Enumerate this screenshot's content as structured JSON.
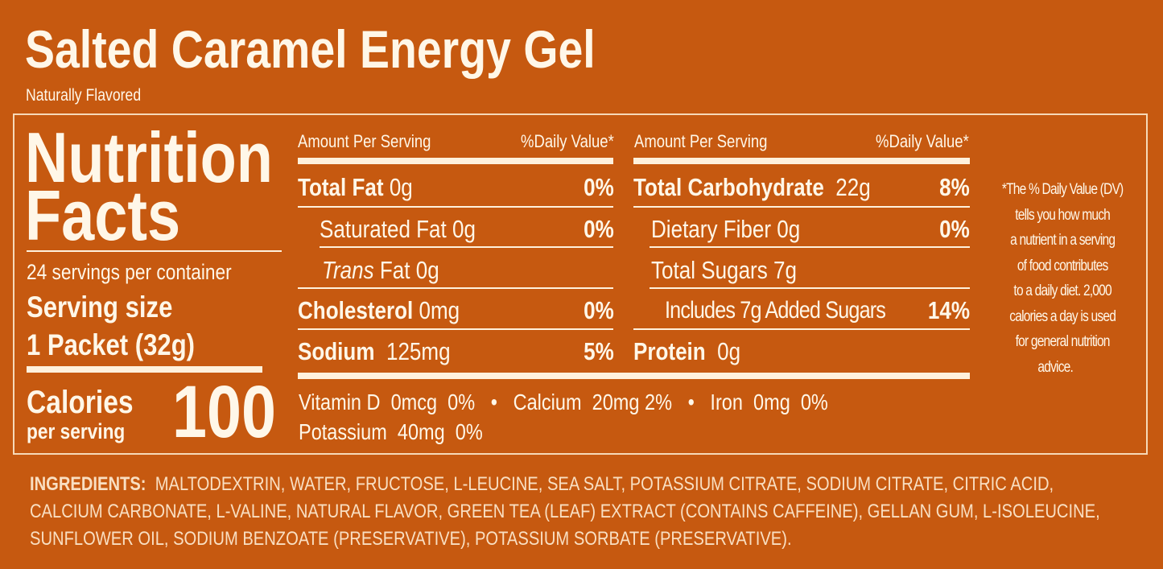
{
  "title": "Salted Caramel Energy Gel",
  "subtitle": "Naturally Flavored",
  "panel": {
    "heading_line1": "Nutrition",
    "heading_line2": "Facts",
    "servings_per_container": "24 servings per container",
    "serving_size_label": "Serving size",
    "serving_size_value": "1 Packet (32g)",
    "calories_label": "Calories",
    "calories_sub": "per serving",
    "calories_value": "100"
  },
  "left_table": {
    "header_amount": "Amount Per Serving",
    "header_dv": "%Daily Value*",
    "rows": [
      {
        "name": "Total Fat",
        "amount": "0g",
        "dv": "0%"
      },
      {
        "name": "Saturated Fat",
        "amount": "0g",
        "dv": "0%"
      },
      {
        "name": "Trans",
        "name_suffix": "Fat",
        "amount": "0g",
        "dv": ""
      },
      {
        "name": "Cholesterol",
        "amount": "0mg",
        "dv": "0%"
      },
      {
        "name": "Sodium",
        "amount": "125mg",
        "dv": "5%"
      }
    ]
  },
  "right_table": {
    "header_amount": "Amount Per Serving",
    "header_dv": "%Daily Value*",
    "rows": [
      {
        "name": "Total Carbohydrate",
        "amount": "22g",
        "dv": "8%"
      },
      {
        "name": "Dietary Fiber",
        "amount": "0g",
        "dv": "0%"
      },
      {
        "name": "Total Sugars",
        "amount": "7g",
        "dv": ""
      },
      {
        "name": "Includes 7g Added Sugars",
        "amount": "",
        "dv": "14%"
      },
      {
        "name": "Protein",
        "amount": "0g",
        "dv": ""
      }
    ]
  },
  "vitamins": {
    "line1": "Vitamin D  0mcg  0%   •   Calcium  20mg 2%   •   Iron  0mg  0%",
    "line2": "Potassium  40mg  0%"
  },
  "footnote": [
    "*The % Daily Value (DV)",
    "tells you how much",
    "a nutrient in a serving",
    "of food contributes",
    "to a daily diet. 2,000",
    "calories a day is used",
    "for general nutrition",
    "advice."
  ],
  "ingredients": {
    "label": "INGREDIENTS:",
    "line1": "MALTODEXTRIN, WATER, FRUCTOSE, L-LEUCINE, SEA SALT, POTASSIUM CITRATE, SODIUM CITRATE, CITRIC ACID,",
    "line2": "CALCIUM CARBONATE, L-VALINE, NATURAL FLAVOR, GREEN TEA (LEAF) EXTRACT (CONTAINS CAFFEINE), GELLAN GUM, L-ISOLEUCINE,",
    "line3": "SUNFLOWER OIL, SODIUM BENZOATE (PRESERVATIVE), POTASSIUM SORBATE (PRESERVATIVE)."
  },
  "colors": {
    "background": "#c65910",
    "text": "#fff7e8"
  }
}
